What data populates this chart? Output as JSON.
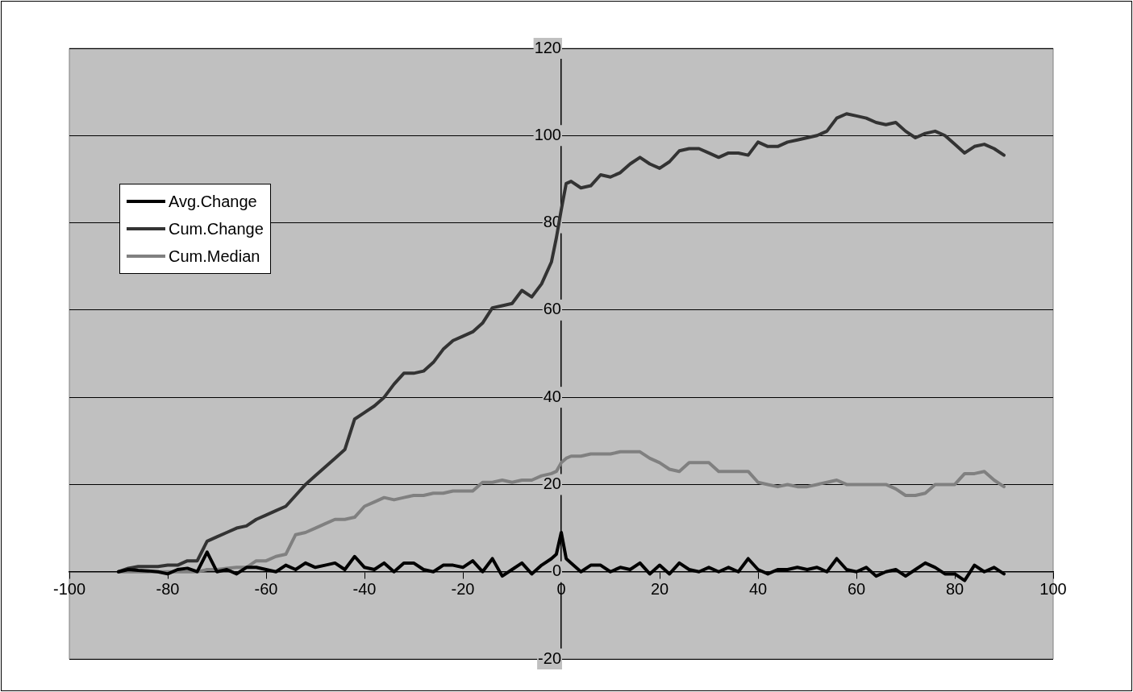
{
  "chart_data": {
    "type": "line",
    "x": [
      -90,
      -88,
      -86,
      -84,
      -82,
      -80,
      -78,
      -76,
      -74,
      -72,
      -70,
      -68,
      -66,
      -64,
      -62,
      -60,
      -58,
      -56,
      -54,
      -52,
      -50,
      -48,
      -46,
      -44,
      -42,
      -40,
      -38,
      -36,
      -34,
      -32,
      -30,
      -28,
      -26,
      -24,
      -22,
      -20,
      -18,
      -16,
      -14,
      -12,
      -10,
      -8,
      -6,
      -4,
      -2,
      -1,
      0,
      1,
      2,
      4,
      6,
      8,
      10,
      12,
      14,
      16,
      18,
      20,
      22,
      24,
      26,
      28,
      30,
      32,
      34,
      36,
      38,
      40,
      42,
      44,
      46,
      48,
      50,
      52,
      54,
      56,
      58,
      60,
      62,
      64,
      66,
      68,
      70,
      72,
      74,
      76,
      78,
      80,
      82,
      84,
      86,
      88,
      90
    ],
    "series": [
      {
        "name": "Avg.Change",
        "color": "#000000",
        "values": [
          0,
          0.5,
          0.3,
          0.2,
          0,
          -0.5,
          0.5,
          0.8,
          0,
          4.5,
          0,
          0.5,
          -0.5,
          1,
          1,
          0.5,
          0,
          1.5,
          0.5,
          2,
          1,
          1.5,
          2,
          0.5,
          3.5,
          1,
          0.5,
          2,
          0,
          2,
          2,
          0.5,
          0,
          1.5,
          1.5,
          1,
          2.5,
          0,
          3,
          -1,
          0.5,
          2,
          -0.5,
          1.5,
          3,
          4,
          9,
          3,
          2,
          0,
          1.5,
          1.5,
          0,
          1,
          0.5,
          2,
          -0.5,
          1.5,
          -0.5,
          2,
          0.5,
          0,
          1,
          0,
          1,
          0,
          3,
          0.5,
          -0.5,
          0.5,
          0.5,
          1,
          0.5,
          1,
          0,
          3,
          0.5,
          0,
          1,
          -1,
          0,
          0.5,
          -1,
          0.5,
          2,
          1,
          -0.5,
          -0.5,
          -2,
          1.5,
          0,
          1,
          -0.5
        ]
      },
      {
        "name": "Cum.Change",
        "color": "#333333",
        "values": [
          0,
          0.8,
          1.2,
          1.2,
          1.2,
          1.5,
          1.5,
          2.5,
          2.5,
          7,
          8,
          9,
          10,
          10.5,
          12,
          13,
          14,
          15,
          17.5,
          20,
          22,
          24,
          26,
          28,
          35,
          36.5,
          38,
          40,
          43,
          45.5,
          45.5,
          46,
          48,
          51,
          53,
          54,
          55,
          57,
          60.5,
          61,
          61.5,
          64.5,
          63,
          66,
          71,
          76.5,
          83,
          89,
          89.5,
          88,
          88.5,
          91,
          90.5,
          91.5,
          93.5,
          95,
          93.5,
          92.5,
          94,
          96.5,
          97,
          97,
          96,
          95,
          96,
          96,
          95.5,
          98.5,
          97.5,
          97.5,
          98.5,
          99,
          99.5,
          100,
          101,
          104,
          105,
          104.5,
          104,
          103,
          102.5,
          103,
          101,
          99.5,
          100.5,
          101,
          100,
          98,
          96,
          97.5,
          98,
          97,
          95.5
        ]
      },
      {
        "name": "Cum.Median",
        "color": "#808080",
        "values": [
          0,
          0,
          0,
          0,
          0,
          0,
          0,
          0,
          0,
          0.5,
          0.5,
          0.8,
          1,
          1,
          2.5,
          2.5,
          3.5,
          4,
          8.5,
          9,
          10,
          11,
          12,
          12,
          12.5,
          15,
          16,
          17,
          16.5,
          17,
          17.5,
          17.5,
          18,
          18,
          18.5,
          18.5,
          18.5,
          20.5,
          20.5,
          21,
          20.5,
          21,
          21,
          22,
          22.5,
          23,
          25,
          26,
          26.5,
          26.5,
          27,
          27,
          27,
          27.5,
          27.5,
          27.5,
          26,
          25,
          23.5,
          23,
          25,
          25,
          25,
          23,
          23,
          23,
          23,
          20.5,
          20,
          19.5,
          20,
          19.5,
          19.5,
          20,
          20.5,
          21,
          20,
          20,
          20,
          20,
          20,
          19,
          17.5,
          17.5,
          18,
          20,
          20,
          20,
          22.5,
          22.5,
          23,
          21,
          19.5
        ]
      }
    ],
    "xlim": [
      -100,
      100
    ],
    "xticks": [
      -100,
      -80,
      -60,
      -40,
      -20,
      0,
      20,
      40,
      60,
      80,
      100
    ],
    "ylim": [
      -20,
      120
    ],
    "yticks": [
      -20,
      0,
      20,
      40,
      60,
      80,
      100,
      120
    ],
    "grid": "y",
    "legend": "left",
    "marker": "none",
    "line_style": "solid"
  }
}
